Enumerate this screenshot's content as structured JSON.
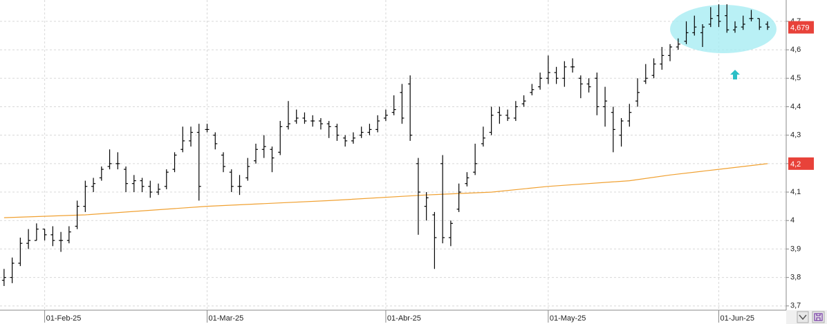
{
  "chart_data": {
    "type": "ohlc",
    "xlim": [
      -0.5,
      96.3
    ],
    "ylim": [
      3.685,
      4.775
    ],
    "xticks": [
      {
        "value": 5,
        "label": "01-Feb-25"
      },
      {
        "value": 25,
        "label": "01-Mar-25"
      },
      {
        "value": 47,
        "label": "01-Abr-25"
      },
      {
        "value": 67,
        "label": "01-May-25"
      },
      {
        "value": 88,
        "label": "01-Jun-25"
      }
    ],
    "yticks": [
      {
        "value": 3.7,
        "label": "3,7"
      },
      {
        "value": 3.8,
        "label": "3,8"
      },
      {
        "value": 3.9,
        "label": "3,9"
      },
      4,
      {
        "value": 4.1,
        "label": "4,1"
      },
      {
        "value": 4.2,
        "label": "4,2"
      },
      {
        "value": 4.3,
        "label": "4,3"
      },
      {
        "value": 4.4,
        "label": "4,4"
      },
      {
        "value": 4.5,
        "label": "4,5"
      },
      {
        "value": 4.6,
        "label": "4,6"
      },
      {
        "value": 4.7,
        "label": "4,7"
      }
    ],
    "grid": true,
    "price": {
      "color": "#000000",
      "open": [
        3.79,
        3.8,
        3.85,
        3.92,
        3.93,
        3.97,
        3.95,
        3.93,
        3.93,
        3.98,
        4.05,
        4.12,
        4.15,
        4.19,
        4.2,
        4.18,
        4.13,
        4.14,
        4.12,
        4.1,
        4.12,
        4.18,
        4.25,
        4.28,
        4.31,
        4.32,
        4.3,
        4.23,
        4.17,
        4.12,
        4.15,
        4.21,
        4.25,
        4.25,
        4.24,
        4.33,
        4.35,
        4.36,
        4.35,
        4.35,
        4.34,
        4.33,
        4.29,
        4.28,
        4.3,
        4.31,
        4.32,
        4.36,
        4.38,
        4.45,
        4.48,
        4.2,
        4.05,
        4.02,
        4.2,
        3.94,
        4.04,
        4.13,
        4.17,
        4.27,
        4.31,
        4.38,
        4.37,
        4.36,
        4.41,
        4.45,
        4.47,
        4.5,
        4.52,
        4.5,
        4.54,
        4.5,
        4.48,
        4.5,
        4.4,
        4.38,
        4.3,
        4.35,
        4.42,
        4.49,
        4.51,
        4.55,
        4.58,
        4.61,
        4.63,
        4.66,
        4.66,
        4.69,
        4.72,
        4.72,
        4.67,
        4.68,
        4.71,
        4.71,
        4.69
      ],
      "high": [
        3.83,
        3.87,
        3.94,
        3.97,
        3.99,
        3.97,
        3.98,
        3.96,
        3.98,
        4.07,
        4.14,
        4.15,
        4.19,
        4.25,
        4.24,
        4.19,
        4.16,
        4.15,
        4.14,
        4.13,
        4.18,
        4.24,
        4.33,
        4.33,
        4.34,
        4.34,
        4.31,
        4.24,
        4.18,
        4.16,
        4.22,
        4.27,
        4.3,
        4.26,
        4.35,
        4.42,
        4.39,
        4.38,
        4.37,
        4.36,
        4.35,
        4.34,
        4.3,
        4.31,
        4.33,
        4.34,
        4.37,
        4.39,
        4.44,
        4.48,
        4.51,
        4.22,
        4.1,
        4.03,
        4.23,
        4.0,
        4.13,
        4.17,
        4.27,
        4.33,
        4.4,
        4.4,
        4.39,
        4.42,
        4.44,
        4.48,
        4.52,
        4.58,
        4.54,
        4.56,
        4.57,
        4.51,
        4.5,
        4.52,
        4.47,
        4.4,
        4.36,
        4.41,
        4.5,
        4.55,
        4.57,
        4.61,
        4.62,
        4.64,
        4.7,
        4.72,
        4.69,
        4.75,
        4.76,
        4.76,
        4.7,
        4.72,
        4.74,
        4.71,
        4.7
      ],
      "low": [
        3.77,
        3.78,
        3.84,
        3.9,
        3.93,
        3.93,
        3.91,
        3.89,
        3.92,
        3.97,
        4.03,
        4.1,
        4.14,
        4.18,
        4.18,
        4.1,
        4.1,
        4.1,
        4.08,
        4.09,
        4.11,
        4.17,
        4.24,
        4.26,
        4.07,
        4.31,
        4.25,
        4.17,
        4.1,
        4.09,
        4.14,
        4.2,
        4.22,
        4.17,
        4.23,
        4.32,
        4.34,
        4.34,
        4.33,
        4.32,
        4.29,
        4.28,
        4.26,
        4.27,
        4.29,
        4.3,
        4.31,
        4.35,
        4.37,
        4.34,
        4.28,
        3.95,
        4.0,
        3.83,
        3.92,
        3.91,
        4.03,
        4.12,
        4.16,
        4.26,
        4.3,
        4.34,
        4.35,
        4.35,
        4.4,
        4.44,
        4.46,
        4.48,
        4.48,
        4.47,
        4.52,
        4.43,
        4.45,
        4.37,
        4.33,
        4.24,
        4.26,
        4.33,
        4.4,
        4.48,
        4.5,
        4.53,
        4.56,
        4.6,
        4.62,
        4.65,
        4.61,
        4.68,
        4.68,
        4.66,
        4.66,
        4.67,
        4.7,
        4.67,
        4.67
      ],
      "close": [
        3.8,
        3.85,
        3.92,
        3.93,
        3.97,
        3.95,
        3.93,
        3.93,
        3.96,
        4.05,
        4.12,
        4.13,
        4.18,
        4.2,
        4.2,
        4.13,
        4.14,
        4.12,
        4.1,
        4.11,
        4.17,
        4.23,
        4.28,
        4.31,
        4.12,
        4.32,
        4.27,
        4.19,
        4.12,
        4.12,
        4.19,
        4.25,
        4.26,
        4.22,
        4.33,
        4.34,
        4.36,
        4.35,
        4.35,
        4.34,
        4.33,
        4.3,
        4.28,
        4.29,
        4.31,
        4.32,
        4.35,
        4.37,
        4.39,
        4.36,
        4.3,
        4.1,
        4.08,
        3.94,
        3.94,
        3.99,
        4.1,
        4.15,
        4.2,
        4.29,
        4.37,
        4.37,
        4.36,
        4.4,
        4.42,
        4.46,
        4.5,
        4.52,
        4.5,
        4.54,
        4.54,
        4.48,
        4.47,
        4.4,
        4.42,
        4.32,
        4.35,
        4.38,
        4.45,
        4.5,
        4.55,
        4.58,
        4.61,
        4.62,
        4.66,
        4.68,
        4.68,
        4.71,
        4.7,
        4.67,
        4.68,
        4.69,
        4.71,
        4.68,
        4.68
      ],
      "last_label": {
        "value": 4.679,
        "label": "4,679"
      }
    },
    "moving_average": {
      "color": "#f0a030",
      "x": [
        0,
        10,
        25,
        40,
        52,
        60,
        67,
        77,
        82,
        88,
        94
      ],
      "values": [
        4.01,
        4.02,
        4.05,
        4.07,
        4.09,
        4.1,
        4.12,
        4.14,
        4.16,
        4.18,
        4.2
      ],
      "last_label": {
        "value": 4.2,
        "label": "4,2"
      }
    }
  }
}
